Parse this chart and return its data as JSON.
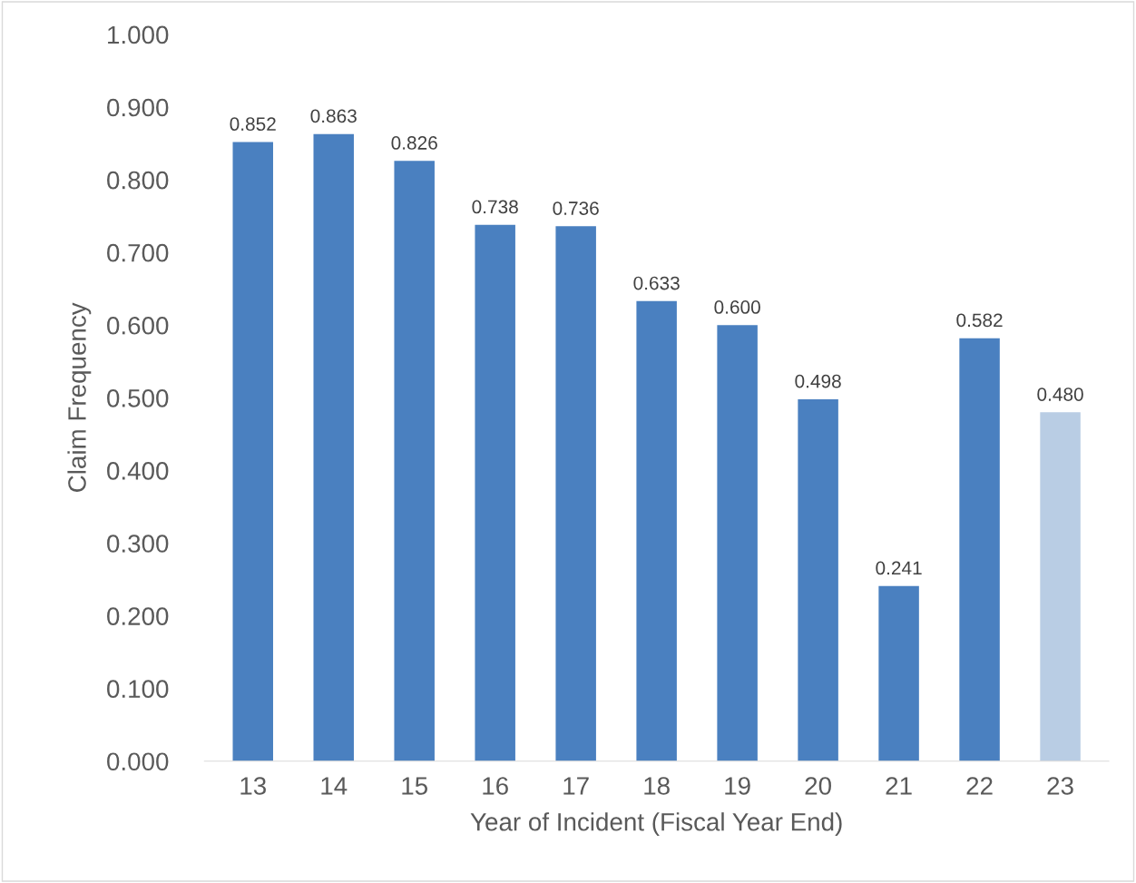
{
  "chart_data": {
    "type": "bar",
    "xlabel": "Year of Incident (Fiscal Year End)",
    "ylabel": "Claim Frequency",
    "categories": [
      "13",
      "14",
      "15",
      "16",
      "17",
      "18",
      "19",
      "20",
      "21",
      "22",
      "23"
    ],
    "values": [
      0.852,
      0.863,
      0.826,
      0.738,
      0.736,
      0.633,
      0.6,
      0.498,
      0.241,
      0.582,
      0.48
    ],
    "value_labels": [
      "0.852",
      "0.863",
      "0.826",
      "0.738",
      "0.736",
      "0.633",
      "0.600",
      "0.498",
      "0.241",
      "0.582",
      "0.480"
    ],
    "colors": [
      "#4a80c0",
      "#4a80c0",
      "#4a80c0",
      "#4a80c0",
      "#4a80c0",
      "#4a80c0",
      "#4a80c0",
      "#4a80c0",
      "#4a80c0",
      "#4a80c0",
      "#b9cde4"
    ],
    "ylim": [
      0,
      1
    ],
    "yticks": [
      {
        "value": 0,
        "label": "0.000"
      },
      {
        "value": 0.1,
        "label": "0.100"
      },
      {
        "value": 0.2,
        "label": "0.200"
      },
      {
        "value": 0.3,
        "label": "0.300"
      },
      {
        "value": 0.4,
        "label": "0.400"
      },
      {
        "value": 0.5,
        "label": "0.500"
      },
      {
        "value": 0.6,
        "label": "0.600"
      },
      {
        "value": 0.7,
        "label": "0.700"
      },
      {
        "value": 0.8,
        "label": "0.800"
      },
      {
        "value": 0.9,
        "label": "0.900"
      },
      {
        "value": 1,
        "label": "1.000"
      }
    ],
    "grid": false
  }
}
